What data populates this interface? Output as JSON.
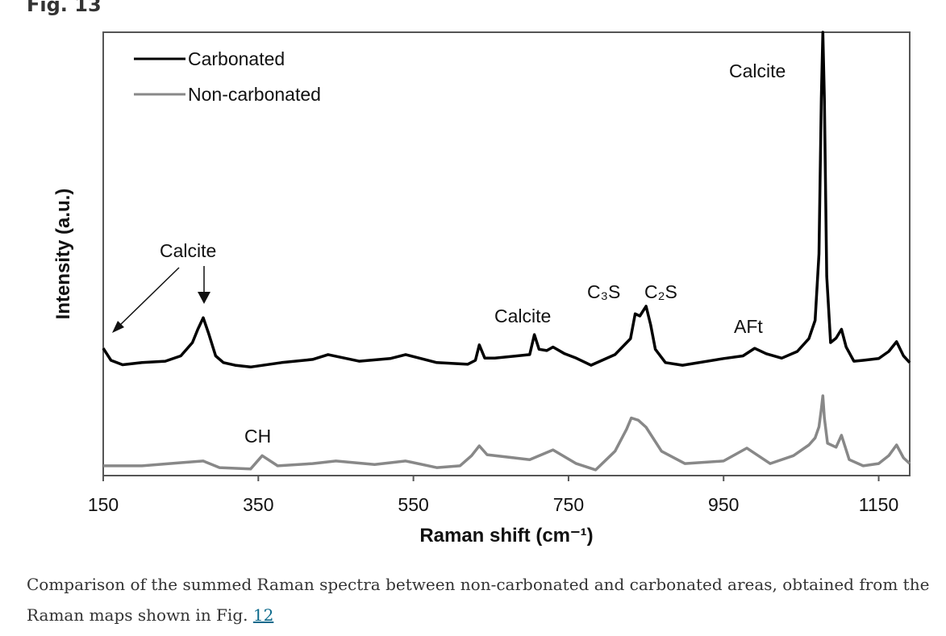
{
  "figure": {
    "label": "Fig. 13"
  },
  "caption": {
    "text": "Comparison of the summed Raman spectra between non-carbonated and carbonated areas, obtained from the Raman maps shown in Fig. ",
    "link": "12"
  },
  "chart_data": {
    "type": "line",
    "xlabel": "Raman shift (cm⁻¹)",
    "ylabel": "Intensity (a.u.)",
    "xlim": [
      150,
      1190
    ],
    "ylim": [
      0,
      100
    ],
    "xticks": [
      150,
      350,
      550,
      750,
      950,
      1150
    ],
    "grid": false,
    "legend": "top-left",
    "series": [
      {
        "name": "Carbonated",
        "color": "#000000",
        "x": [
          150,
          160,
          175,
          200,
          230,
          250,
          265,
          272,
          279,
          286,
          295,
          305,
          320,
          340,
          380,
          420,
          440,
          480,
          520,
          540,
          580,
          620,
          630,
          635,
          642,
          655,
          700,
          706,
          712,
          722,
          730,
          745,
          760,
          779,
          810,
          830,
          836,
          842,
          850,
          856,
          862,
          875,
          897,
          950,
          975,
          990,
          1005,
          1025,
          1045,
          1060,
          1068,
          1073,
          1076,
          1078,
          1080,
          1083,
          1088,
          1095,
          1102,
          1108,
          1118,
          1130,
          1150,
          1163,
          1173,
          1182,
          1190
        ],
        "y": [
          28.7,
          26,
          25,
          25.5,
          25.8,
          27,
          30,
          33,
          35.6,
          32,
          27,
          25.5,
          24.9,
          24.5,
          25.5,
          26.2,
          27.3,
          25.8,
          26.4,
          27.3,
          25.5,
          25.1,
          26,
          29.5,
          26.5,
          26.5,
          27.3,
          31.8,
          28.5,
          28.2,
          29,
          27.5,
          26.5,
          24.9,
          27.3,
          30.9,
          36.5,
          36,
          38.2,
          34,
          28.5,
          25.5,
          24.9,
          26.4,
          27,
          28.7,
          27.5,
          26.5,
          28,
          30.9,
          35,
          50,
          85,
          100,
          85,
          45,
          30,
          31,
          33,
          29,
          25.8,
          26,
          26.4,
          28,
          30.2,
          27,
          25.5
        ]
      },
      {
        "name": "Non-carbonated",
        "color": "#888888",
        "x": [
          150,
          200,
          250,
          279,
          300,
          340,
          355,
          375,
          420,
          450,
          500,
          540,
          580,
          610,
          625,
          635,
          645,
          680,
          700,
          730,
          760,
          785,
          810,
          825,
          831,
          840,
          850,
          870,
          900,
          950,
          980,
          1010,
          1040,
          1060,
          1068,
          1073,
          1076,
          1078,
          1080,
          1084,
          1095,
          1102,
          1112,
          1130,
          1150,
          1163,
          1173,
          1182,
          1190
        ],
        "y": [
          2.2,
          2.2,
          2.9,
          3.3,
          1.8,
          1.5,
          4.5,
          2.2,
          2.7,
          3.3,
          2.5,
          3.3,
          1.8,
          2.2,
          4.5,
          6.7,
          4.7,
          4,
          3.6,
          5.8,
          2.7,
          1.3,
          5.5,
          10.5,
          13,
          12.5,
          10.9,
          5.5,
          2.7,
          3.3,
          6.2,
          2.7,
          4.5,
          6.9,
          8.5,
          11,
          15,
          18,
          13,
          7.3,
          6.4,
          9.1,
          3.6,
          2.2,
          2.7,
          4.5,
          6.9,
          4,
          2.7
        ]
      }
    ],
    "annotations": [
      {
        "text": "Calcite",
        "x": 1078
      },
      {
        "text": "Calcite",
        "x": 279
      },
      {
        "text": "Calcite",
        "x": 706
      },
      {
        "text": "C₃S",
        "x": 836
      },
      {
        "text": "C₂S",
        "x": 850
      },
      {
        "text": "AFt",
        "x": 990
      },
      {
        "text": "CH",
        "x": 355
      }
    ]
  }
}
